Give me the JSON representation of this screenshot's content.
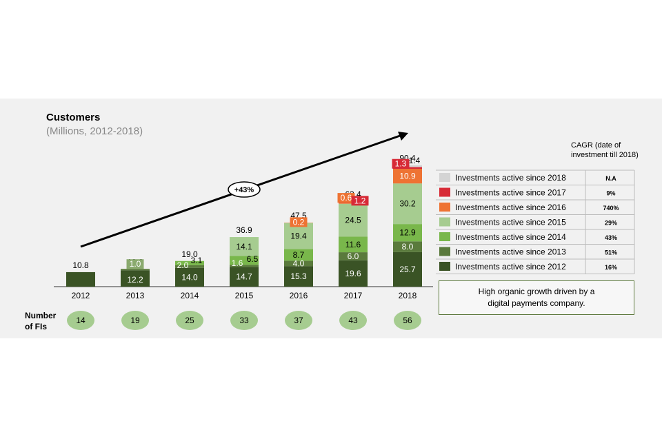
{
  "chart_data": {
    "type": "stacked-bar",
    "title": "Customers",
    "subtitle": "(Millions, 2012-2018)",
    "categories": [
      "2012",
      "2013",
      "2014",
      "2015",
      "2016",
      "2017",
      "2018"
    ],
    "totals": [
      "10.8",
      "13.2",
      "19.0",
      "36.9",
      "47.5",
      "63.4",
      "90.4"
    ],
    "series": [
      {
        "name": "Investments active since 2012",
        "color": "#3a5325",
        "cagr": "16%",
        "values": [
          10.8,
          12.2,
          14.0,
          14.7,
          15.3,
          19.6,
          25.7
        ],
        "labels": [
          "",
          "12.2",
          "14.0",
          "14.7",
          "15.3",
          "19.6",
          "25.7"
        ]
      },
      {
        "name": "Investments active since 2013",
        "color": "#5a7a3c",
        "cagr": "51%",
        "values": [
          0,
          1.0,
          2.0,
          1.6,
          4.0,
          6.0,
          8.0
        ],
        "labels": [
          "",
          "1.0",
          "2.0",
          "1.6",
          "4.0",
          "6.0",
          "8.0"
        ]
      },
      {
        "name": "Investments active since 2014",
        "color": "#79b74b",
        "cagr": "43%",
        "values": [
          0,
          0,
          3.1,
          6.5,
          8.7,
          11.6,
          12.9
        ],
        "labels": [
          "",
          "",
          "3.1",
          "6.5",
          "8.7",
          "11.6",
          "12.9"
        ]
      },
      {
        "name": "Investments active since 2015",
        "color": "#a6cc90",
        "cagr": "29%",
        "values": [
          0,
          0,
          0,
          14.1,
          19.4,
          24.5,
          30.2
        ],
        "labels": [
          "",
          "",
          "",
          "14.1",
          "19.4",
          "24.5",
          "30.2"
        ]
      },
      {
        "name": "Investments active since 2016",
        "color": "#ee7333",
        "cagr": "740%",
        "values": [
          0,
          0,
          0,
          0,
          0.2,
          0.6,
          10.9
        ],
        "labels": [
          "",
          "",
          "",
          "",
          "0.2",
          "0.6",
          "10.9"
        ]
      },
      {
        "name": "Investments active since 2017",
        "color": "#d72a36",
        "cagr": "9%",
        "values": [
          0,
          0,
          0,
          0,
          0,
          1.2,
          1.3
        ],
        "labels": [
          "",
          "",
          "",
          "",
          "",
          "1.2",
          "1.3"
        ]
      },
      {
        "name": "Investments active since 2018",
        "color": "#d4d4d4",
        "cagr": "N.A",
        "values": [
          0,
          0,
          0,
          0,
          0,
          0,
          1.4
        ],
        "labels": [
          "",
          "",
          "",
          "",
          "",
          "",
          "1.4"
        ]
      }
    ],
    "growth_annotation": "+43%",
    "cagr_header": "CAGR (date of investment till 2018)",
    "number_of_fis_label": "Number of FIs",
    "number_of_fis": [
      "14",
      "19",
      "25",
      "33",
      "37",
      "43",
      "56"
    ],
    "note": "High organic growth driven by a digital payments company.",
    "ylim": [
      0,
      95
    ]
  }
}
